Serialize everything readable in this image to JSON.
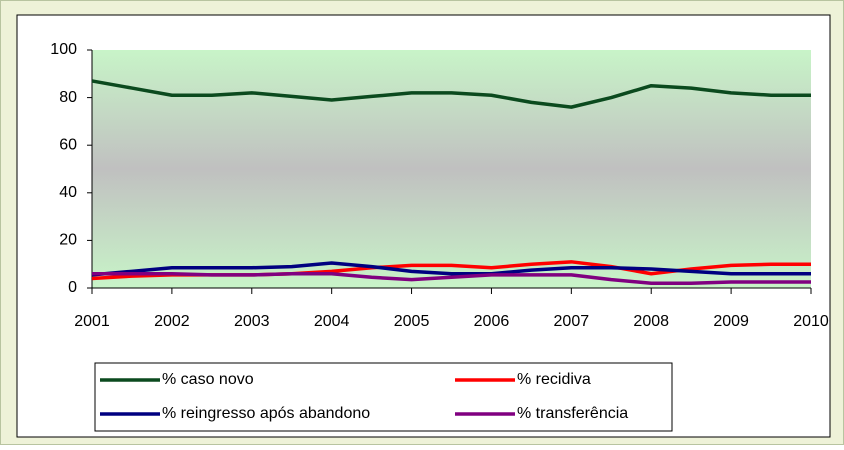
{
  "chart_data": {
    "type": "line",
    "x": [
      2001,
      2001.5,
      2002,
      2002.5,
      2003,
      2003.5,
      2004,
      2004.5,
      2005,
      2005.5,
      2006,
      2006.5,
      2007,
      2007.5,
      2008,
      2008.5,
      2009,
      2009.5,
      2010
    ],
    "xlim": [
      2001,
      2010
    ],
    "xticks": [
      2001,
      2002,
      2003,
      2004,
      2005,
      2006,
      2007,
      2008,
      2009,
      2010
    ],
    "ylim": [
      0,
      100
    ],
    "yticks": [
      0,
      20,
      40,
      60,
      80,
      100
    ],
    "grid": false,
    "legend": "bottom",
    "series": [
      {
        "name": "% caso novo",
        "color": "#0b4a1e",
        "values": [
          87,
          84,
          81,
          81,
          82,
          80.5,
          79,
          80.5,
          82,
          82,
          81,
          78,
          76,
          80,
          85,
          84,
          82,
          81,
          81
        ]
      },
      {
        "name": "% recidiva",
        "color": "#ff0000",
        "values": [
          4,
          5,
          5.5,
          5.5,
          5.5,
          6,
          7,
          8.5,
          9.5,
          9.5,
          8.5,
          10,
          11,
          9,
          6,
          8,
          9.5,
          10,
          10
        ]
      },
      {
        "name": "% reingresso após abandono",
        "color": "#000080",
        "values": [
          5.5,
          7,
          8.5,
          8.5,
          8.5,
          9,
          10.5,
          9,
          7,
          6,
          6,
          7.5,
          8.5,
          8.5,
          8,
          7,
          6,
          6,
          6
        ]
      },
      {
        "name": "% transferência",
        "color": "#800080",
        "values": [
          6,
          6,
          6,
          5.5,
          5.5,
          6,
          6,
          4.5,
          3.5,
          4.5,
          5.5,
          5.5,
          5.5,
          3.5,
          2,
          2,
          2.5,
          2.5,
          2.5
        ]
      }
    ]
  }
}
